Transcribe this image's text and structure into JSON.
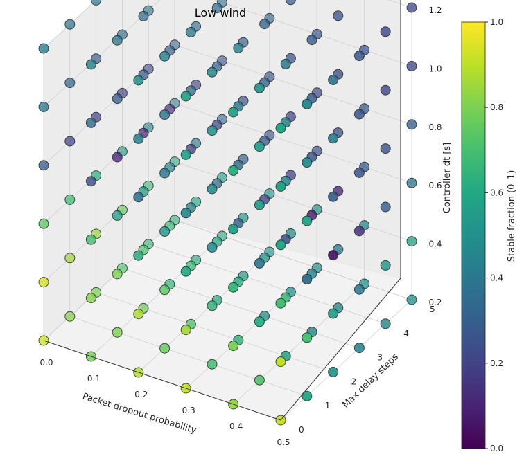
{
  "chart_data": {
    "type": "scatter",
    "title": "Low wind",
    "xlabel": "Packet dropout probability",
    "ylabel": "Max delay steps",
    "zlabel": "Controller dt [s]",
    "xlim": [
      0.0,
      0.5
    ],
    "ylim": [
      0,
      5
    ],
    "zlim": [
      0.2,
      1.2
    ],
    "x_ticks": [
      "0.0",
      "0.1",
      "0.2",
      "0.3",
      "0.4",
      "0.5"
    ],
    "y_ticks": [
      "0",
      "1",
      "2",
      "3",
      "4",
      "5"
    ],
    "z_ticks": [
      "0.2",
      "0.4",
      "0.6",
      "0.8",
      "1.0",
      "1.2"
    ],
    "grid": true,
    "colorbar": {
      "label": "Stable fraction (0–1)",
      "colormap": "viridis",
      "range": [
        0.0,
        1.0
      ],
      "ticks": [
        "0.0",
        "0.2",
        "0.4",
        "0.6",
        "0.8",
        "1.0"
      ]
    },
    "axes_values": {
      "x": [
        0.0,
        0.1,
        0.2,
        0.3,
        0.4,
        0.5
      ],
      "y": [
        0,
        1,
        2,
        3,
        4,
        5
      ],
      "z": [
        0.2,
        0.4,
        0.6,
        0.8,
        1.0,
        1.2
      ]
    },
    "stable_fraction_grid_note": "values[z_index][y_index][x_index]",
    "values": [
      [
        [
          0.92,
          0.78,
          0.88,
          0.9,
          0.84,
          0.92
        ],
        [
          0.82,
          0.8,
          0.76,
          0.7,
          0.72,
          0.6
        ],
        [
          0.8,
          0.78,
          0.72,
          0.64,
          0.58,
          0.52
        ],
        [
          0.72,
          0.66,
          0.6,
          0.52,
          0.48,
          0.44
        ],
        [
          0.66,
          0.6,
          0.54,
          0.5,
          0.48,
          0.46
        ],
        [
          0.62,
          0.58,
          0.52,
          0.48,
          0.5,
          0.5
        ]
      ],
      [
        [
          0.94,
          0.82,
          0.88,
          0.86,
          0.8,
          0.9
        ],
        [
          0.86,
          0.8,
          0.74,
          0.66,
          0.6,
          0.7
        ],
        [
          0.84,
          0.72,
          0.68,
          0.62,
          0.66,
          0.55
        ],
        [
          0.76,
          0.68,
          0.6,
          0.54,
          0.44,
          0.4
        ],
        [
          0.68,
          0.6,
          0.54,
          0.48,
          0.4,
          0.52
        ],
        [
          0.6,
          0.56,
          0.52,
          0.5,
          0.46,
          0.58
        ]
      ],
      [
        [
          0.74,
          0.7,
          0.62,
          0.6,
          0.66,
          0.7
        ],
        [
          0.68,
          0.58,
          0.52,
          0.48,
          0.4,
          0.36
        ],
        [
          0.62,
          0.54,
          0.46,
          0.3,
          0.22,
          0.05
        ],
        [
          0.54,
          0.46,
          0.36,
          0.2,
          0.08,
          0.14
        ],
        [
          0.46,
          0.4,
          0.3,
          0.18,
          0.12,
          0.3
        ],
        [
          0.4,
          0.34,
          0.26,
          0.24,
          0.28,
          0.4
        ]
      ],
      [
        [
          0.3,
          0.24,
          0.36,
          0.46,
          0.56,
          0.6
        ],
        [
          0.22,
          0.1,
          0.4,
          0.48,
          0.54,
          0.58
        ],
        [
          0.18,
          0.12,
          0.2,
          0.36,
          0.46,
          0.3
        ],
        [
          0.16,
          0.14,
          0.22,
          0.3,
          0.24,
          0.26
        ],
        [
          0.22,
          0.2,
          0.24,
          0.2,
          0.24,
          0.26
        ],
        [
          0.3,
          0.26,
          0.24,
          0.22,
          0.28,
          0.3
        ]
      ],
      [
        [
          0.4,
          0.36,
          0.42,
          0.56,
          0.62,
          0.58
        ],
        [
          0.34,
          0.3,
          0.4,
          0.5,
          0.54,
          0.48
        ],
        [
          0.3,
          0.28,
          0.36,
          0.4,
          0.44,
          0.42
        ],
        [
          0.34,
          0.3,
          0.32,
          0.3,
          0.28,
          0.26
        ],
        [
          0.38,
          0.34,
          0.3,
          0.26,
          0.24,
          0.22
        ],
        [
          0.4,
          0.36,
          0.32,
          0.28,
          0.26,
          0.22
        ]
      ],
      [
        [
          0.42,
          0.44,
          0.48,
          0.56,
          0.58,
          0.6
        ],
        [
          0.4,
          0.4,
          0.44,
          0.48,
          0.5,
          0.46
        ],
        [
          0.38,
          0.36,
          0.4,
          0.42,
          0.4,
          0.38
        ],
        [
          0.36,
          0.34,
          0.36,
          0.32,
          0.3,
          0.28
        ],
        [
          0.4,
          0.36,
          0.32,
          0.28,
          0.26,
          0.22
        ],
        [
          0.46,
          0.4,
          0.34,
          0.3,
          0.26,
          0.22
        ]
      ]
    ]
  }
}
